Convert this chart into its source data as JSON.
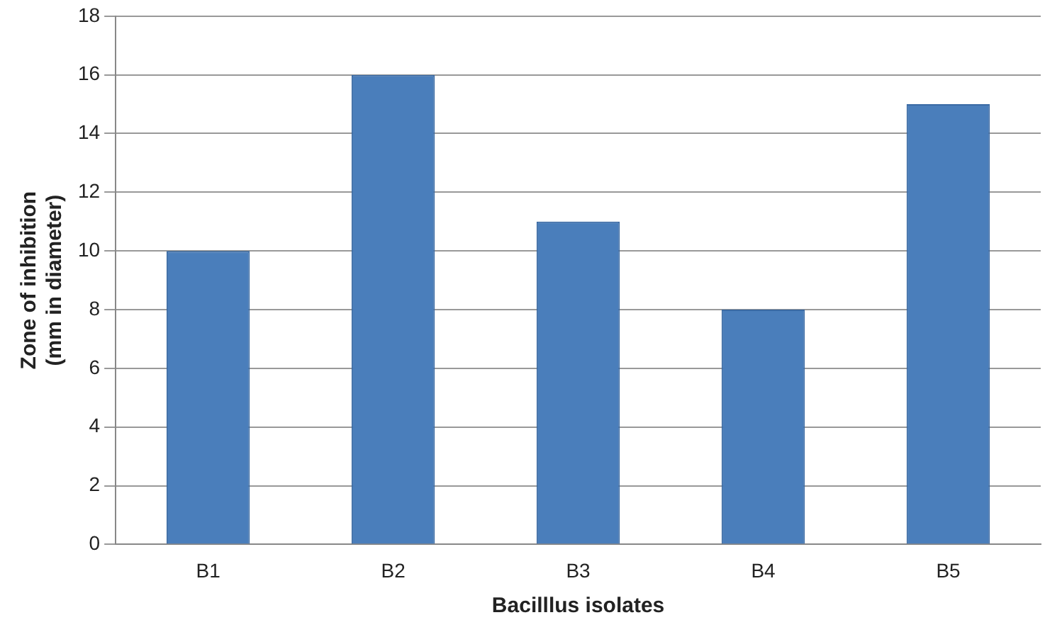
{
  "chart_data": {
    "type": "bar",
    "xlabel": "Bacilllus isolates",
    "ylabel": "Zone of inhibition\n(mm in diameter)",
    "categories": [
      "B1",
      "B2",
      "B3",
      "B4",
      "B5"
    ],
    "values": [
      10,
      16,
      11,
      8,
      15
    ],
    "color": "#4a7ebb",
    "ylim": [
      0,
      18
    ],
    "yticks": [
      0,
      2,
      4,
      6,
      8,
      10,
      12,
      14,
      16,
      18
    ],
    "grid": "y",
    "legend": false
  }
}
